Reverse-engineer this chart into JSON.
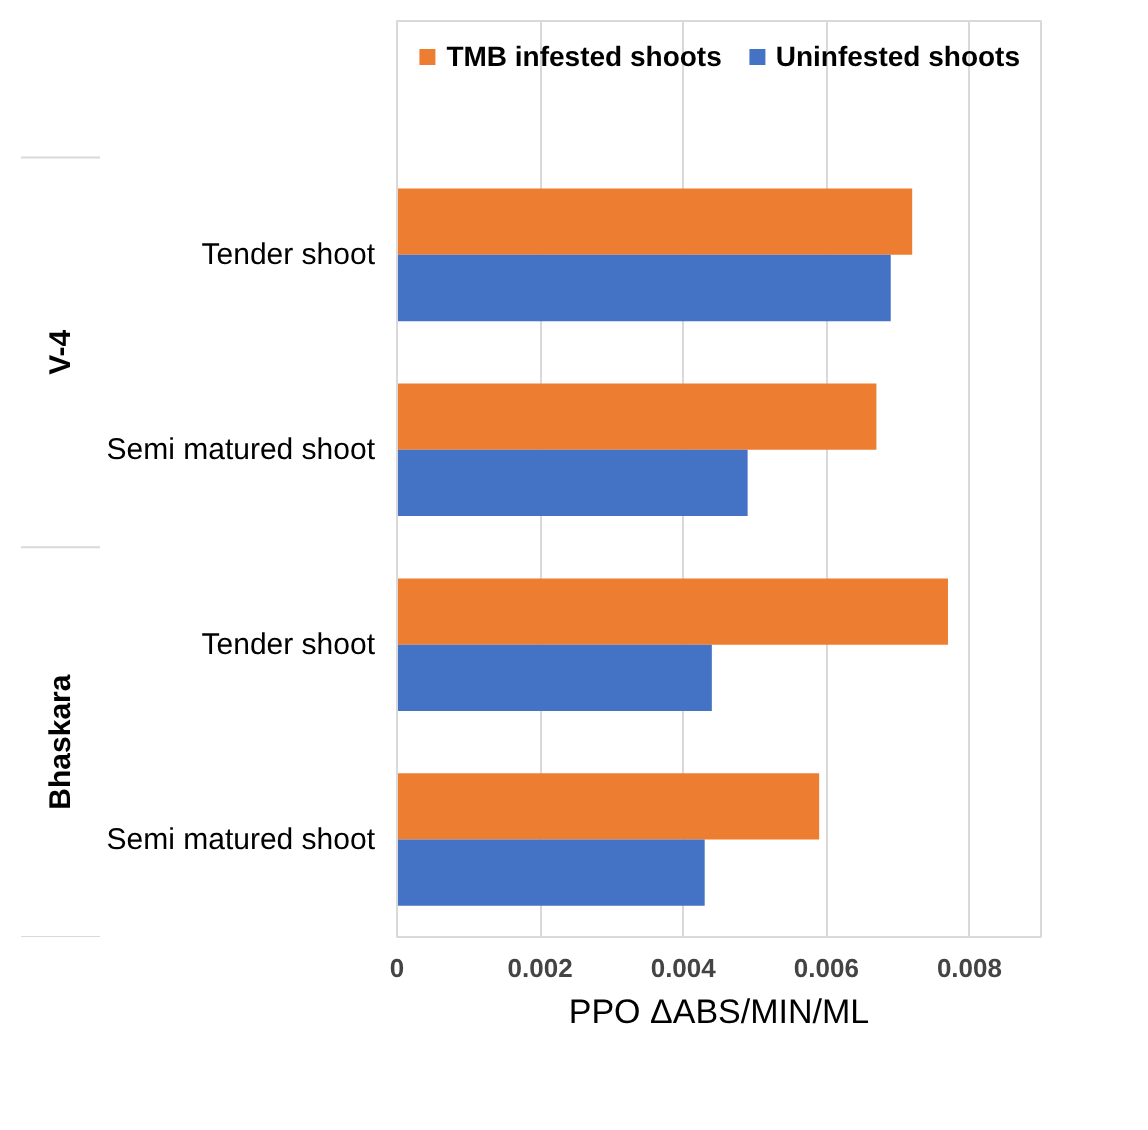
{
  "chart_data": {
    "type": "bar",
    "orientation": "horizontal",
    "xlabel": "PPO ΔABS/MIN/ML",
    "categories": [
      "Tender shoot",
      "Semi matured shoot",
      "Tender shoot",
      "Semi matured shoot"
    ],
    "annotations": [
      "V-4",
      "Bhaskara"
    ],
    "series": [
      {
        "name": "TMB infested shoots",
        "color": "#ed7d31",
        "values": [
          0.0072,
          0.0067,
          0.0077,
          0.0059
        ]
      },
      {
        "name": "Uninfested shoots",
        "color": "#4472c4",
        "values": [
          0.0069,
          0.0049,
          0.0044,
          0.0043
        ]
      }
    ],
    "xlim": [
      0,
      0.009
    ],
    "xticks": [
      0,
      0.002,
      0.004,
      0.006,
      0.008
    ],
    "grid": "x",
    "legend": "top"
  }
}
